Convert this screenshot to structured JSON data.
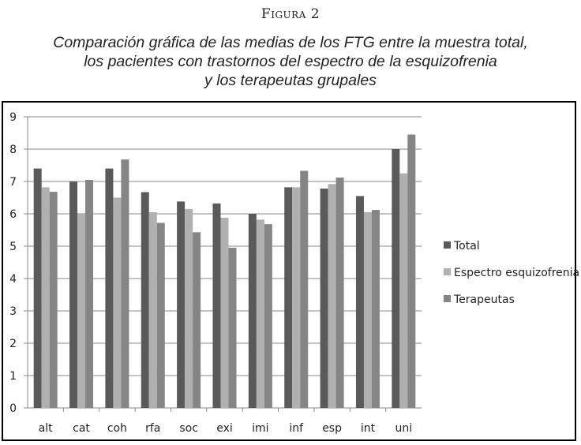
{
  "figure": {
    "label": "Figura 2",
    "caption_line1": "Comparación gráfica de las medias de los FTG entre la muestra total,",
    "caption_line2": "los pacientes con trastornos del espectro de la esquizofrenia",
    "caption_line3": "y los terapeutas grupales"
  },
  "chart_data": {
    "type": "bar",
    "categories": [
      "alt",
      "cat",
      "coh",
      "rfa",
      "soc",
      "exi",
      "imi",
      "inf",
      "esp",
      "int",
      "uni"
    ],
    "ylim": [
      0,
      9
    ],
    "yticks": [
      "0",
      "1",
      "2",
      "3",
      "4",
      "5",
      "6",
      "7",
      "8",
      "9"
    ],
    "grid": true,
    "legend_position": "right",
    "series": [
      {
        "name": "Total",
        "color": "#5a5a5a",
        "values": [
          7.4,
          7.0,
          7.4,
          6.67,
          6.38,
          6.32,
          6.0,
          6.82,
          6.78,
          6.55,
          8.0
        ]
      },
      {
        "name": "Espectro esquizofrenia",
        "color": "#b0b0b0",
        "values": [
          6.82,
          6.0,
          6.5,
          6.05,
          6.15,
          5.88,
          5.82,
          6.82,
          6.92,
          6.05,
          7.25
        ]
      },
      {
        "name": "Terapeutas",
        "color": "#858585",
        "values": [
          6.68,
          7.05,
          7.68,
          5.72,
          5.43,
          4.95,
          5.68,
          7.33,
          7.12,
          6.12,
          8.45
        ]
      }
    ]
  }
}
